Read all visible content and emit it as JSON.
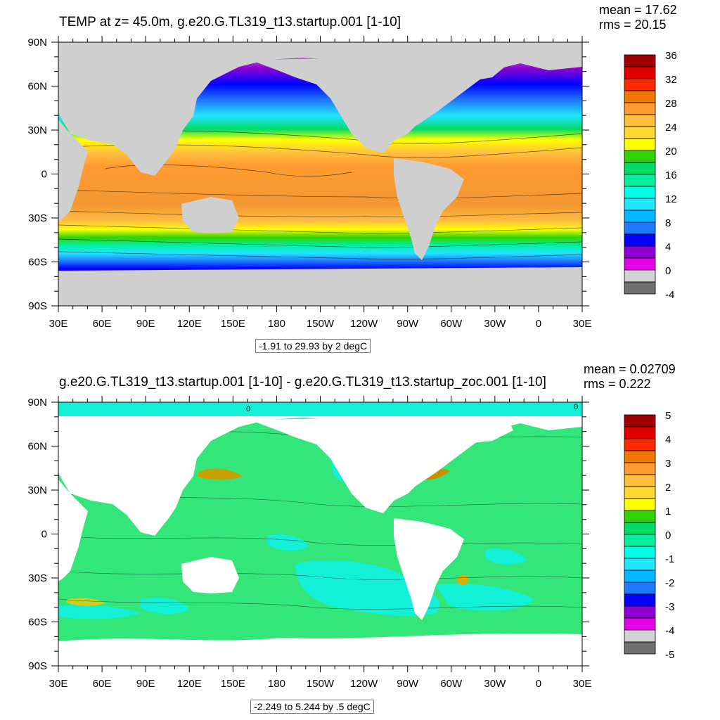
{
  "panels": [
    {
      "title": "TEMP at z=  45.0m, g.e20.G.TL319_t13.startup.001 [1-10]",
      "mean": "mean = 17.62",
      "rms": "rms = 20.15",
      "range_label": "-1.91 to 29.93 by 2 degC",
      "colorbar_labels": [
        "36",
        "32",
        "28",
        "24",
        "20",
        "16",
        "12",
        "8",
        "4",
        "0",
        "-4"
      ],
      "colorbar_colors": [
        "#a00000",
        "#dc0000",
        "#ff2800",
        "#f07800",
        "#ff9a30",
        "#ffc040",
        "#ffd830",
        "#ffff00",
        "#32d200",
        "#00dc64",
        "#00f0a0",
        "#00ffe6",
        "#20e6ff",
        "#00b8ff",
        "#1f78ff",
        "#0000ff",
        "#8c00d2",
        "#e600e6",
        "#d2d2d2",
        "#707070"
      ],
      "contour_labels": []
    },
    {
      "title": "g.e20.G.TL319_t13.startup.001 [1-10] - g.e20.G.TL319_t13.startup_zoc.001 [1-10]",
      "mean": "mean = 0.02709",
      "rms": "rms = 0.222",
      "range_label": "-2.249 to 5.244 by .5 degC",
      "colorbar_labels": [
        "5",
        "4",
        "3",
        "2",
        "1",
        "0",
        "-1",
        "-2",
        "-3",
        "-4",
        "-5"
      ],
      "colorbar_colors": [
        "#a00000",
        "#dc0000",
        "#ff2800",
        "#f07800",
        "#ff9a30",
        "#ffc040",
        "#ffd830",
        "#ffff00",
        "#32d200",
        "#00dc64",
        "#00f0a0",
        "#00ffe6",
        "#20e6ff",
        "#00b8ff",
        "#1f78ff",
        "#0000ff",
        "#8c00d2",
        "#e600e6",
        "#d2d2d2",
        "#707070"
      ],
      "contour_labels": [
        "0",
        "0"
      ]
    }
  ],
  "lat_labels": [
    "90N",
    "60N",
    "30N",
    "0",
    "30S",
    "60S",
    "90S"
  ],
  "lon_labels": [
    "30E",
    "60E",
    "90E",
    "120E",
    "150E",
    "180",
    "150W",
    "120W",
    "90W",
    "60W",
    "30W",
    "0",
    "30E"
  ],
  "colors": {
    "land_top": "#cfcfcf",
    "land_bottom": "#ffffff",
    "frame": "#000000"
  }
}
